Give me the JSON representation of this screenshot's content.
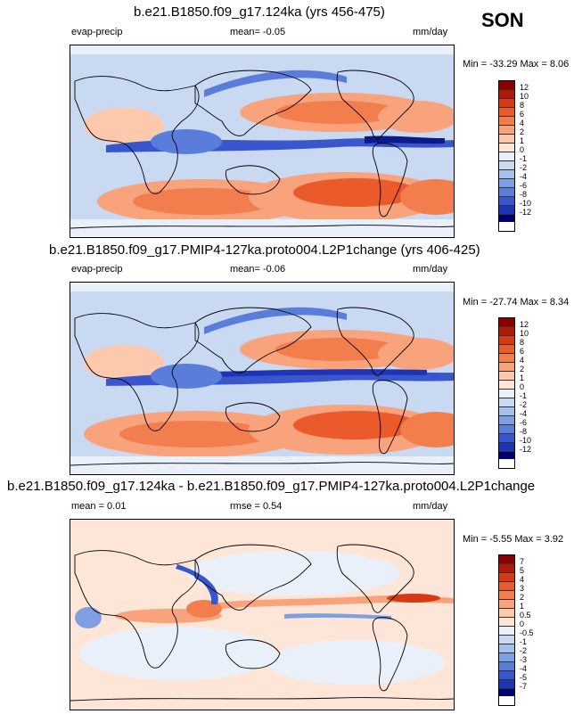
{
  "season": "SON",
  "panels": [
    {
      "title": "b.e21.B1850.f09_g17.124ka (yrs 456-475)",
      "variable": "evap-precip",
      "mean_label": "mean=  -0.05",
      "units": "mm/day",
      "minmax": "Min = -33.29 Max =   8.06",
      "colorbar_ticks": [
        "12",
        "10",
        "8",
        "6",
        "4",
        "2",
        "1",
        "0",
        "-1",
        "-2",
        "-4",
        "-6",
        "-8",
        "-10",
        "-12"
      ]
    },
    {
      "title": "b.e21.B1850.f09_g17.PMIP4-127ka.proto004.L2P1change (yrs 406-425)",
      "variable": "evap-precip",
      "mean_label": "mean=  -0.06",
      "units": "mm/day",
      "minmax": "Min = -27.74 Max =   8.34",
      "colorbar_ticks": [
        "12",
        "10",
        "8",
        "6",
        "4",
        "2",
        "1",
        "0",
        "-1",
        "-2",
        "-4",
        "-6",
        "-8",
        "-10",
        "-12"
      ]
    },
    {
      "title": "b.e21.B1850.f09_g17.124ka - b.e21.B1850.f09_g17.PMIP4-127ka.proto004.L2P1change",
      "mean_label": "mean =   0.01",
      "rmse_label": "rmse =   0.54",
      "units": "mm/day",
      "minmax": "Min = -5.55 Max =   3.92",
      "colorbar_ticks": [
        "7",
        "5",
        "4",
        "3",
        "2",
        "1",
        "0.5",
        "0",
        "-0.5",
        "-1",
        "-2",
        "-3",
        "-4",
        "-5",
        "-7"
      ]
    }
  ],
  "colors": {
    "scale": [
      "#8b0000",
      "#b0180a",
      "#d63a14",
      "#ea5a2a",
      "#f27d4d",
      "#f8a37c",
      "#fcc9ad",
      "#fde6d8",
      "#eaf0fa",
      "#cad9f2",
      "#a6bfeb",
      "#7ea0e2",
      "#5a7ddb",
      "#3a56cc",
      "#1e34b5",
      "#0c1a8a",
      "#000070"
    ],
    "land": "#ffffff"
  }
}
